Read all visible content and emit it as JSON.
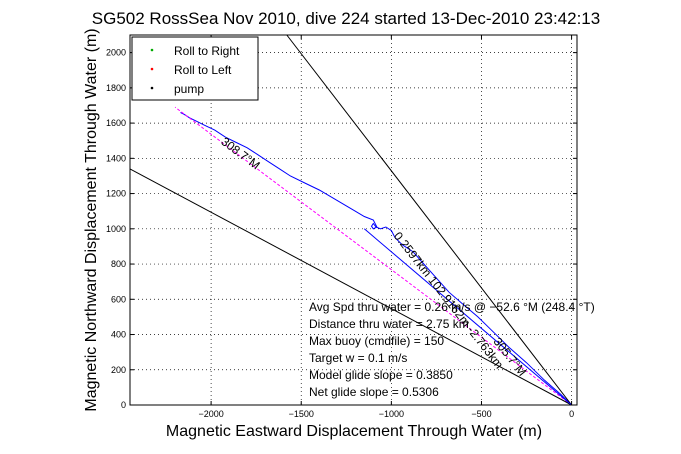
{
  "chart_data": {
    "type": "line",
    "title": "SG502 RossSea Nov 2010, dive 224 started 13-Dec-2010 23:42:13",
    "xlabel": "Magnetic Eastward Displacement Through Water (m)",
    "ylabel": "Magnetic Northward Displacement Through Water (m)",
    "xlim": [
      -2450,
      30
    ],
    "ylim": [
      0,
      2100
    ],
    "x_ticks": [
      -2000,
      -1500,
      -1000,
      -500,
      0
    ],
    "y_ticks": [
      0,
      200,
      400,
      600,
      800,
      1000,
      1200,
      1400,
      1600,
      1800,
      2000
    ],
    "grid": true,
    "legend_placement": "top-left",
    "legend": [
      {
        "label": "Roll to Right",
        "color": "#00aa00",
        "marker": "dot"
      },
      {
        "label": "Roll to Left",
        "color": "#ff0000",
        "marker": "dot"
      },
      {
        "label": "pump",
        "color": "#000000",
        "marker": "dot"
      }
    ],
    "series": [
      {
        "color": "#0000ff",
        "x": [
          0,
          -60,
          -150,
          -250,
          -350,
          -450,
          -520,
          -600,
          -680,
          -750,
          -820,
          -880,
          -940,
          -980,
          -1000,
          -1030,
          -1060,
          -1085,
          -1100,
          -1110,
          -1100,
          -1080,
          -1100,
          -1150,
          -1200,
          -1300,
          -1400,
          -1480,
          -1560,
          -1620,
          -1680,
          -1740,
          -1800,
          -1860,
          -1920,
          -1980,
          -2040,
          -2080,
          -2120,
          -2150,
          -2170
        ],
        "y": [
          0,
          60,
          140,
          240,
          330,
          430,
          500,
          570,
          640,
          720,
          800,
          870,
          910,
          950,
          990,
          1010,
          1000,
          1010,
          1030,
          1015,
          1000,
          1010,
          1050,
          1070,
          1100,
          1160,
          1220,
          1260,
          1300,
          1340,
          1380,
          1420,
          1460,
          1490,
          1520,
          1560,
          1590,
          1610,
          1630,
          1650,
          1660
        ]
      },
      {
        "color": "#ff00ff",
        "dashed": true,
        "x": [
          0,
          -2200
        ],
        "y": [
          0,
          1690
        ]
      },
      {
        "color": "#000000",
        "x": [
          0,
          -2450
        ],
        "y": [
          0,
          1340
        ]
      },
      {
        "color": "#000000",
        "x": [
          0,
          -1580
        ],
        "y": [
          0,
          2100
        ]
      },
      {
        "color": "#0000ff",
        "x": [
          0,
          -1150
        ],
        "y": [
          0,
          1000
        ]
      }
    ],
    "annotations": [
      {
        "text": "308.7°M",
        "x": -1850,
        "y": 1410,
        "rotate": 37
      },
      {
        "text": "0.2597km 102.9162m -2.763km",
        "x": -700,
        "y": 580,
        "rotate": 52
      },
      {
        "text": "305.7°M",
        "x": -360,
        "y": 260,
        "rotate": 52
      }
    ],
    "stats": [
      "Avg Spd thru water = 0.26 m/s @ −52.6    °M (248.4 °T)",
      "Distance thru water = 2.75 km",
      "Max buoy (cmdfile) = 150",
      "Target w = 0.1 m/s",
      "Model glide slope = 0.3850",
      "Net glide slope = 0.5306"
    ]
  }
}
